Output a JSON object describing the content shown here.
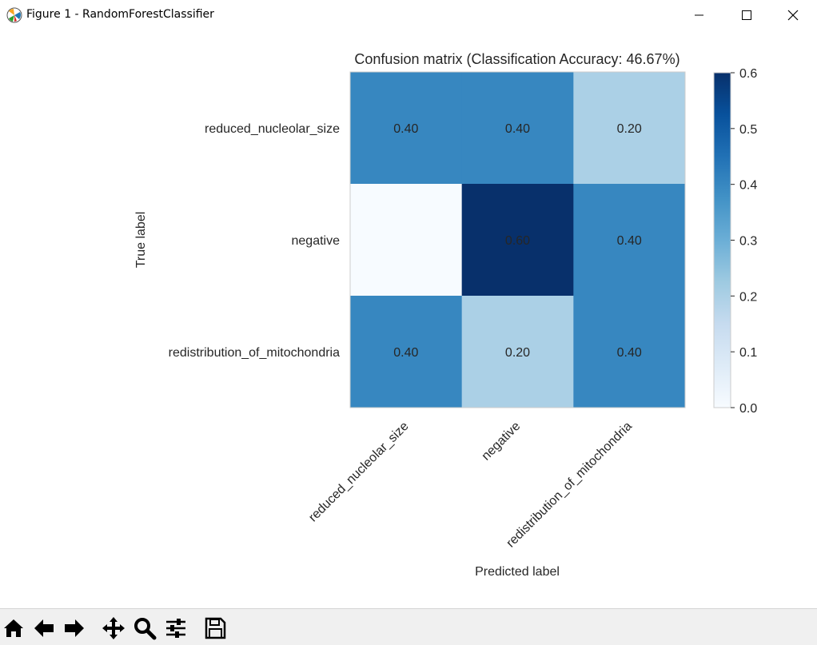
{
  "window": {
    "title": "Figure 1 - RandomForestClassifier",
    "icon": "matplotlib-logo-icon",
    "controls": [
      "minimize-icon",
      "maximize-icon",
      "close-icon"
    ]
  },
  "toolbar": {
    "buttons": [
      "home-icon",
      "back-arrow-icon",
      "forward-arrow-icon",
      "pan-move-icon",
      "zoom-magnifier-icon",
      "configure-subplots-icon",
      "save-floppy-icon"
    ]
  },
  "chart_data": {
    "type": "heatmap",
    "title": "Confusion matrix (Classification Accuracy: 46.67%)",
    "xlabel": "Predicted label",
    "ylabel": "True label",
    "x_categories": [
      "reduced_nucleolar_size",
      "negative",
      "redistribution_of_mitochondria"
    ],
    "y_categories": [
      "reduced_nucleolar_size",
      "negative",
      "redistribution_of_mitochondria"
    ],
    "values": [
      [
        0.4,
        0.4,
        0.2
      ],
      [
        0.0,
        0.6,
        0.4
      ],
      [
        0.4,
        0.2,
        0.4
      ]
    ],
    "cell_labels": [
      [
        "0.40",
        "0.40",
        "0.20"
      ],
      [
        "",
        "0.60",
        "0.40"
      ],
      [
        "0.40",
        "0.20",
        "0.40"
      ]
    ],
    "colormap": "Blues",
    "colorbar": {
      "min": 0.0,
      "max": 0.6,
      "ticks": [
        0.0,
        0.1,
        0.2,
        0.3,
        0.4,
        0.5,
        0.6
      ],
      "tick_labels": [
        "0.0",
        "0.1",
        "0.2",
        "0.3",
        "0.4",
        "0.5",
        "0.6"
      ]
    },
    "grid": false
  }
}
